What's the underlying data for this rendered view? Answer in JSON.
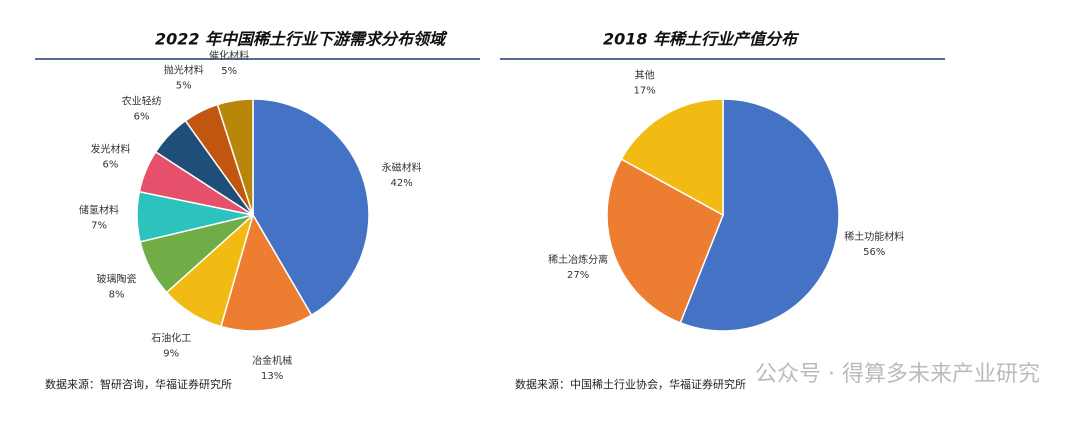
{
  "chart_data": [
    {
      "type": "pie",
      "title": "2022 年中国稀土行业下游需求分布领域",
      "categories": [
        "永磁材料",
        "冶金机械",
        "石油化工",
        "玻璃陶瓷",
        "储氢材料",
        "发光材料",
        "农业轻纺",
        "抛光材料",
        "催化材料"
      ],
      "values": [
        42,
        13,
        9,
        8,
        7,
        6,
        6,
        5,
        5
      ],
      "value_labels": [
        "42%",
        "13%",
        "9%",
        "8%",
        "7%",
        "6%",
        "6%",
        "5%",
        "5%"
      ],
      "colors": [
        "#4472c4",
        "#ed7d31",
        "#f2bb14",
        "#70ad47",
        "#2cc2bd",
        "#e6506a",
        "#1f4e79",
        "#c0560f",
        "#b8860b"
      ],
      "source": "数据来源：智研咨询，华福证券研究所"
    },
    {
      "type": "pie",
      "title": "2018 年稀土行业产值分布",
      "categories": [
        "稀土功能材料",
        "稀土冶炼分离",
        "其他"
      ],
      "values": [
        56,
        27,
        17
      ],
      "value_labels": [
        "56%",
        "27%",
        "17%"
      ],
      "colors": [
        "#4472c4",
        "#ed7d31",
        "#f2bb14"
      ],
      "source": "数据来源：中国稀土行业协会，华福证券研究所"
    }
  ],
  "watermark": "公众号 · 得算多未来产业研究"
}
